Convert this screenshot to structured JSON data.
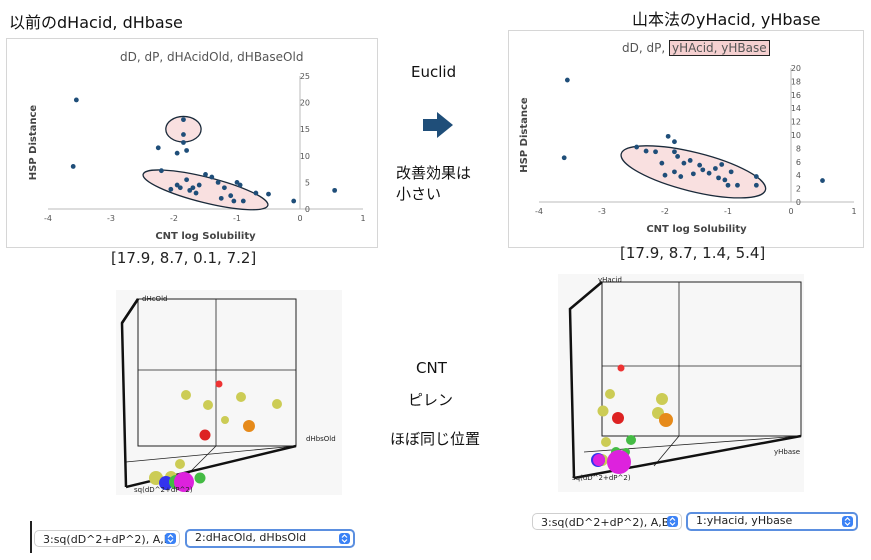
{
  "left": {
    "heading": "以前のdHacid, dHbase",
    "chart_title": "dD, dP, dHAcidOld, dHBaseOld",
    "params": "[17.9, 8.7, 0.1, 7.2]",
    "axis3d": {
      "top": "dHcOld",
      "right": "dHbsOld",
      "bottom": "sq(dD^2+dP^2)"
    },
    "select1": "3:sq(dD^2+dP^2), A,B",
    "select2": "2:dHacOld, dHbsOld"
  },
  "right": {
    "heading": "山本法のyHacid, yHbase",
    "chart_title_prefix": "dD, dP,",
    "chart_title_highlight": "yHAcid, yHBase",
    "params": "[17.9, 8.7, 1.4, 5.4]",
    "axis3d": {
      "top": "yHacid",
      "right": "yHbase",
      "bottom": "sq(dD^2+dP^2)"
    },
    "select1": "3:sq(dD^2+dP^2), A,B",
    "select2": "1:yHacid, yHbase"
  },
  "middle": {
    "method": "Euclid",
    "effect_line1": "改善効果は",
    "effect_line2": "小さい",
    "cnt": "CNT",
    "pyrene": "ピレン",
    "same_pos": "ほぼ同じ位置"
  },
  "chart_data": [
    {
      "type": "scatter",
      "title": "dD, dP, dHAcidOld, dHBaseOld",
      "xlabel": "CNT log Solubility",
      "ylabel": "HSP Distance",
      "xlim": [
        -4,
        1
      ],
      "ylim": [
        0,
        25
      ],
      "x_ticks": [
        "-4",
        "-3",
        "-2",
        "-1",
        "0",
        "1"
      ],
      "y_ticks": [
        "0",
        "5",
        "10",
        "15",
        "20",
        "25"
      ],
      "color": "#1f4e79",
      "points": [
        [
          -3.55,
          20.5
        ],
        [
          -3.6,
          8.0
        ],
        [
          -2.25,
          11.5
        ],
        [
          -2.2,
          7.2
        ],
        [
          -2.05,
          3.7
        ],
        [
          -1.95,
          10.5
        ],
        [
          -1.95,
          4.5
        ],
        [
          -1.9,
          4.0
        ],
        [
          -1.85,
          16.8
        ],
        [
          -1.85,
          14.0
        ],
        [
          -1.85,
          12.5
        ],
        [
          -1.8,
          11.0
        ],
        [
          -1.8,
          5.5
        ],
        [
          -1.75,
          3.5
        ],
        [
          -1.7,
          4.0
        ],
        [
          -1.65,
          3.0
        ],
        [
          -1.6,
          4.5
        ],
        [
          -1.5,
          6.5
        ],
        [
          -1.4,
          6.0
        ],
        [
          -1.3,
          5.0
        ],
        [
          -1.25,
          2.0
        ],
        [
          -1.2,
          4.0
        ],
        [
          -1.1,
          2.5
        ],
        [
          -1.05,
          1.5
        ],
        [
          -1.0,
          5.0
        ],
        [
          -0.95,
          4.5
        ],
        [
          -0.9,
          1.5
        ],
        [
          -0.7,
          3.0
        ],
        [
          -0.5,
          2.8
        ],
        [
          -0.1,
          1.5
        ],
        [
          0.55,
          3.5
        ]
      ],
      "ellipses": [
        {
          "cx": -1.85,
          "cy": 15.0,
          "rx": 0.28,
          "ry": 2.4
        },
        {
          "cx": -1.5,
          "cy": 3.6,
          "rx": 1.02,
          "ry": 2.4
        }
      ]
    },
    {
      "type": "scatter",
      "title": "dD, dP, yHAcid, yHBase",
      "xlabel": "CNT log Solubility",
      "ylabel": "HSP Distance",
      "xlim": [
        -4,
        1
      ],
      "ylim": [
        0,
        20
      ],
      "x_ticks": [
        "-4",
        "-3",
        "-2",
        "-1",
        "0",
        "1"
      ],
      "y_ticks": [
        "0",
        "2",
        "4",
        "6",
        "8",
        "10",
        "12",
        "14",
        "16",
        "18",
        "20"
      ],
      "color": "#1f4e79",
      "points": [
        [
          -3.55,
          18.2
        ],
        [
          -3.6,
          6.6
        ],
        [
          -2.45,
          8.2
        ],
        [
          -2.3,
          7.6
        ],
        [
          -2.15,
          7.5
        ],
        [
          -2.05,
          5.8
        ],
        [
          -2.0,
          4.0
        ],
        [
          -1.95,
          9.8
        ],
        [
          -1.85,
          4.5
        ],
        [
          -1.85,
          9.0
        ],
        [
          -1.85,
          7.5
        ],
        [
          -1.8,
          6.8
        ],
        [
          -1.75,
          3.8
        ],
        [
          -1.7,
          5.8
        ],
        [
          -1.6,
          6.2
        ],
        [
          -1.55,
          4.2
        ],
        [
          -1.45,
          5.5
        ],
        [
          -1.4,
          4.8
        ],
        [
          -1.3,
          4.3
        ],
        [
          -1.2,
          5.0
        ],
        [
          -1.15,
          3.6
        ],
        [
          -1.1,
          5.6
        ],
        [
          -1.05,
          3.3
        ],
        [
          -1.0,
          2.5
        ],
        [
          -0.95,
          4.5
        ],
        [
          -0.85,
          2.5
        ],
        [
          -0.55,
          3.8
        ],
        [
          -0.55,
          2.5
        ],
        [
          0.5,
          3.2
        ]
      ],
      "ellipses": [
        {
          "cx": -1.55,
          "cy": 4.5,
          "rx": 1.18,
          "ry": 2.9
        }
      ]
    }
  ]
}
